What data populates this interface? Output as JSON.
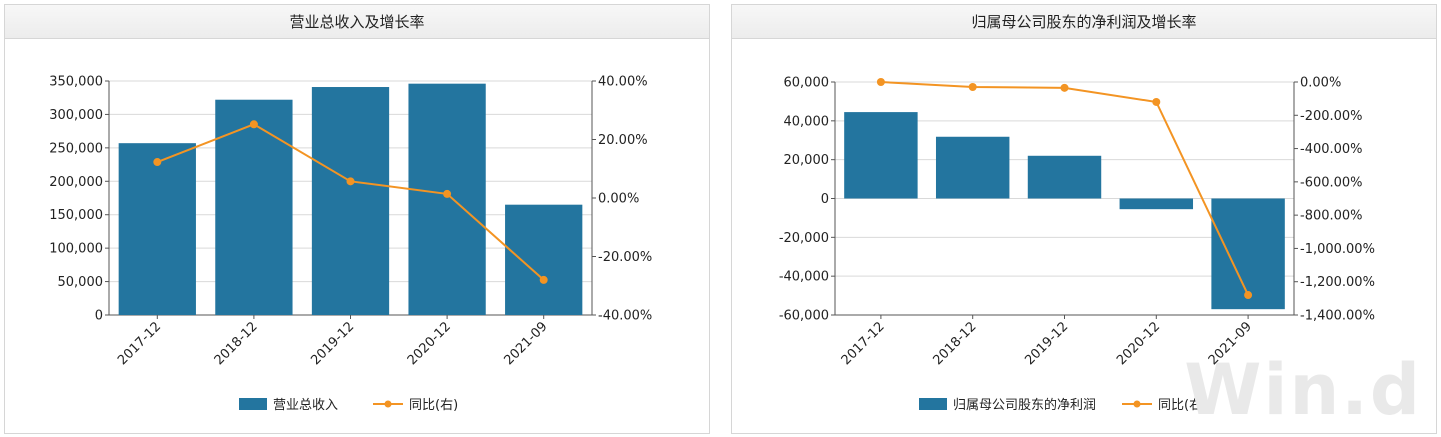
{
  "chart_data": [
    {
      "type": "bar",
      "title": "营业总收入及增长率",
      "categories": [
        "2017-12",
        "2018-12",
        "2019-12",
        "2020-12",
        "2021-09"
      ],
      "series": [
        {
          "name": "营业总收入",
          "type": "bar",
          "axis": "left",
          "values": [
            257000,
            322000,
            341000,
            346000,
            165000
          ]
        },
        {
          "name": "同比(右)",
          "type": "line",
          "axis": "right",
          "values": [
            12.3,
            25.2,
            5.7,
            1.4,
            -28.0
          ]
        }
      ],
      "left_axis": {
        "ylim": [
          0,
          350000
        ],
        "ticks": [
          "0",
          "50,000",
          "100,000",
          "150,000",
          "200,000",
          "250,000",
          "300,000",
          "350,000"
        ]
      },
      "right_axis": {
        "ylim": [
          -40,
          40
        ],
        "ticks": [
          "-40.00%",
          "-20.00%",
          "0.00%",
          "20.00%",
          "40.00%"
        ]
      },
      "grid": true,
      "legend_position": "bottom",
      "colors": {
        "bar": "#23759f",
        "line": "#f39423"
      }
    },
    {
      "type": "bar",
      "title": "归属母公司股东的净利润及增长率",
      "categories": [
        "2017-12",
        "2018-12",
        "2019-12",
        "2020-12",
        "2021-09"
      ],
      "series": [
        {
          "name": "归属母公司股东的净利润",
          "type": "bar",
          "axis": "left",
          "values": [
            44500,
            31800,
            22000,
            -5500,
            -57000
          ]
        },
        {
          "name": "同比(右)",
          "type": "line",
          "axis": "right",
          "values": [
            0,
            -30,
            -35,
            -120,
            -1280
          ]
        }
      ],
      "left_axis": {
        "ylim": [
          -60000,
          60000
        ],
        "ticks": [
          "-60,000",
          "-40,000",
          "-20,000",
          "0",
          "20,000",
          "40,000",
          "60,000"
        ]
      },
      "right_axis": {
        "ylim": [
          -1400,
          0
        ],
        "ticks": [
          "-1,400.00%",
          "-1,200.00%",
          "-1,000.00%",
          "-800.00%",
          "-600.00%",
          "-400.00%",
          "-200.00%",
          "0.00%"
        ]
      },
      "grid": true,
      "legend_position": "bottom",
      "colors": {
        "bar": "#23759f",
        "line": "#f39423"
      }
    }
  ],
  "watermark": "Win.d"
}
